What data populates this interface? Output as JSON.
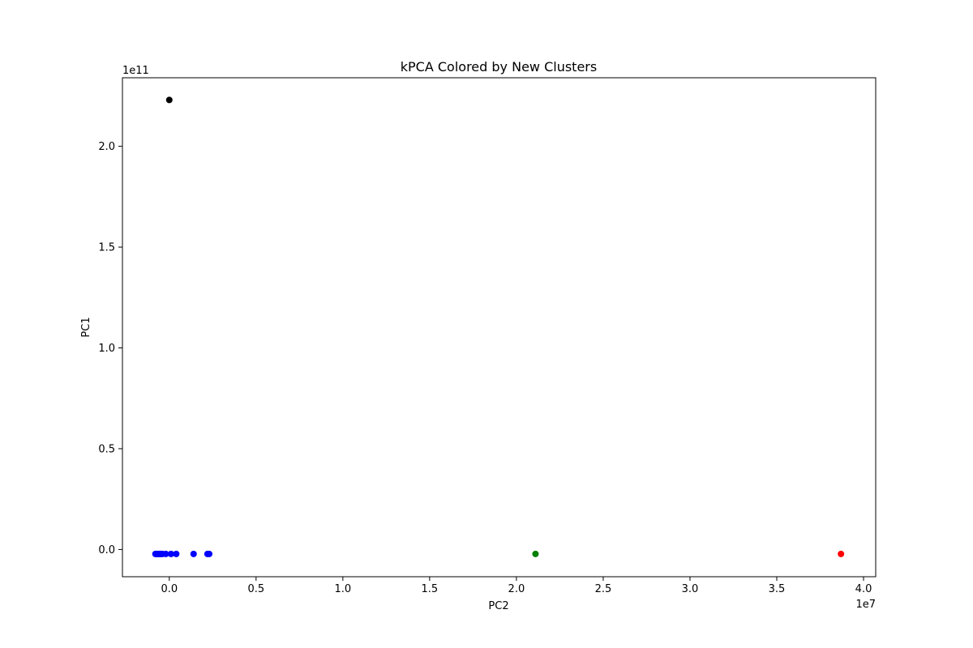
{
  "chart_data": {
    "type": "scatter",
    "title": "kPCA Colored by New Clusters",
    "xlabel": "PC2",
    "ylabel": "PC1",
    "x_offset_label": "1e7",
    "y_offset_label": "1e11",
    "xlim": [
      -0.27,
      4.07
    ],
    "ylim": [
      -0.135,
      2.34
    ],
    "x_ticks": [
      0.0,
      0.5,
      1.0,
      1.5,
      2.0,
      2.5,
      3.0,
      3.5,
      4.0
    ],
    "x_tick_labels": [
      "0.0",
      "0.5",
      "1.0",
      "1.5",
      "2.0",
      "2.5",
      "3.0",
      "3.5",
      "4.0"
    ],
    "y_ticks": [
      0.0,
      0.5,
      1.0,
      1.5,
      2.0
    ],
    "y_tick_labels": [
      "0.0",
      "0.5",
      "1.0",
      "1.5",
      "2.0"
    ],
    "grid": false,
    "legend": "none",
    "series": [
      {
        "color": "#0000ff",
        "x": [
          -0.08,
          -0.075,
          -0.07,
          -0.065,
          -0.06,
          -0.055,
          -0.05,
          -0.045,
          -0.04,
          -0.02,
          0.01,
          0.04,
          0.14,
          0.22,
          0.23
        ],
        "y": [
          -0.022,
          -0.022,
          -0.022,
          -0.022,
          -0.022,
          -0.022,
          -0.022,
          -0.022,
          -0.022,
          -0.022,
          -0.022,
          -0.022,
          -0.022,
          -0.022,
          -0.022
        ]
      },
      {
        "color": "#000000",
        "x": [
          0.0
        ],
        "y": [
          2.23
        ]
      },
      {
        "color": "#008000",
        "x": [
          2.11
        ],
        "y": [
          -0.022
        ]
      },
      {
        "color": "#ff0000",
        "x": [
          3.87
        ],
        "y": [
          -0.022
        ]
      }
    ]
  }
}
